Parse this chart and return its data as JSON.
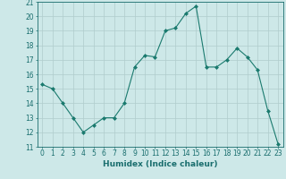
{
  "x": [
    0,
    1,
    2,
    3,
    4,
    5,
    6,
    7,
    8,
    9,
    10,
    11,
    12,
    13,
    14,
    15,
    16,
    17,
    18,
    19,
    20,
    21,
    22,
    23
  ],
  "y": [
    15.3,
    15.0,
    14.0,
    13.0,
    12.0,
    12.5,
    13.0,
    13.0,
    14.0,
    16.5,
    17.3,
    17.2,
    19.0,
    19.2,
    20.2,
    20.7,
    16.5,
    16.5,
    17.0,
    17.8,
    17.2,
    16.3,
    13.5,
    11.2
  ],
  "line_color": "#1a7a6e",
  "marker": "D",
  "marker_size": 2.0,
  "bg_color": "#cde8e8",
  "grid_color": "#b0cccc",
  "xlabel": "Humidex (Indice chaleur)",
  "xlim": [
    -0.5,
    23.5
  ],
  "ylim": [
    11,
    21
  ],
  "yticks": [
    11,
    12,
    13,
    14,
    15,
    16,
    17,
    18,
    19,
    20,
    21
  ],
  "xticks": [
    0,
    1,
    2,
    3,
    4,
    5,
    6,
    7,
    8,
    9,
    10,
    11,
    12,
    13,
    14,
    15,
    16,
    17,
    18,
    19,
    20,
    21,
    22,
    23
  ],
  "tick_color": "#1a6e6e",
  "label_fontsize": 6.5,
  "tick_fontsize": 5.5
}
